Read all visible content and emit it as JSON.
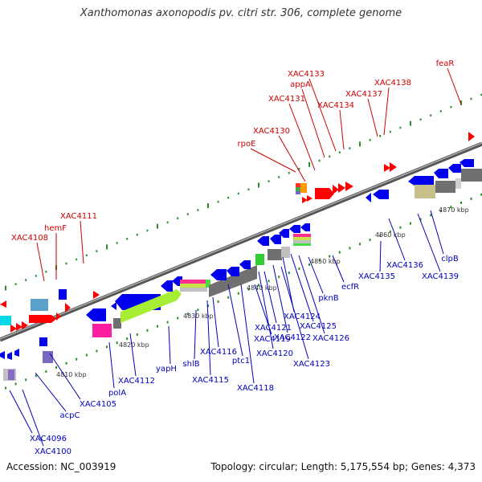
{
  "title": "Xanthomonas axonopodis pv. citri str. 306, complete genome",
  "footer": {
    "accession": "Accession: NC_003919",
    "topology": "Topology: circular; Length: 5,175,554 bp; Genes: 4,373"
  },
  "colors": {
    "backbone": "#777777",
    "tick": "#2e8b2e",
    "red_label": "#cc0000",
    "blue_label": "#0000bb",
    "ruler_label": "#333333"
  },
  "ruler_labels": [
    "4810 kbp",
    "4820 kbp",
    "4830 kbp",
    "4840 kbp",
    "4850 kbp",
    "4860 kbp",
    "4870 kbp"
  ],
  "upper_labels": [
    "XAC4108",
    "hemF",
    "XAC4111",
    "rpoE",
    "XAC4130",
    "XAC4131",
    "appA",
    "XAC4133",
    "XAC4134",
    "XAC4137",
    "XAC4138",
    "feaR"
  ],
  "lower_labels": [
    "XAC4096",
    "XAC4100",
    "acpC",
    "XAC4105",
    "polA",
    "XAC4112",
    "yapH",
    "shlB",
    "XAC4115",
    "XAC4116",
    "ptc1",
    "XAC4118",
    "XAC4119",
    "XAC4120",
    "XAC4121",
    "XAC4122",
    "XAC4123",
    "XAC4124",
    "XAC4125",
    "XAC4126",
    "pknB",
    "ecfR",
    "XAC4135",
    "XAC4136",
    "XAC4139",
    "clpB"
  ]
}
